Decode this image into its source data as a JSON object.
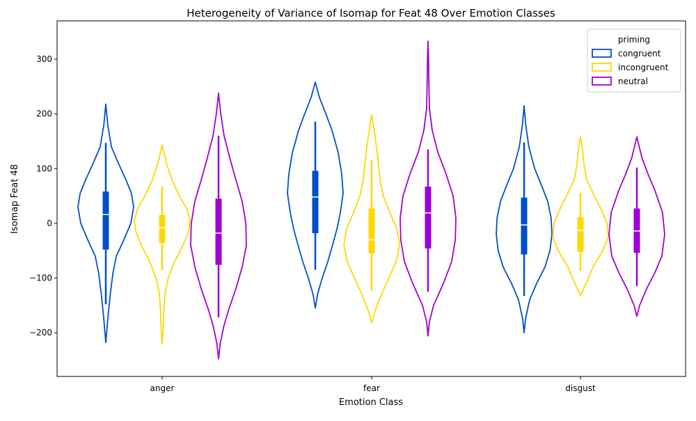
{
  "chart_data": {
    "type": "violin",
    "title": "Heterogeneity of Variance of Isomap for Feat 48 Over Emotion Classes",
    "xlabel": "Emotion Class",
    "ylabel": "Isomap Feat 48",
    "categories": [
      "anger",
      "fear",
      "disgust"
    ],
    "ylim": [
      -280,
      370
    ],
    "yticks": [
      -200,
      -100,
      0,
      100,
      200,
      300
    ],
    "ytick_labels": [
      "−200",
      "−100",
      "0",
      "100",
      "200",
      "300"
    ],
    "grid": false,
    "legend": {
      "title": "priming",
      "placement": "top-right",
      "entries": [
        "congruent",
        "incongruent",
        "neutral"
      ]
    },
    "series": [
      {
        "name": "congruent",
        "color": "#0050c8",
        "groups": [
          {
            "category": "anger",
            "q1": -48,
            "median": 16,
            "q3": 58,
            "whisker_low": -148,
            "whisker_high": 147,
            "kde_min": -218,
            "kde_max": 218,
            "profile": [
              [
                -218,
                0.0
              ],
              [
                -200,
                0.03
              ],
              [
                -170,
                0.08
              ],
              [
                -130,
                0.16
              ],
              [
                -90,
                0.26
              ],
              [
                -60,
                0.38
              ],
              [
                -30,
                0.65
              ],
              [
                0,
                0.9
              ],
              [
                30,
                1.0
              ],
              [
                55,
                0.92
              ],
              [
                80,
                0.72
              ],
              [
                110,
                0.45
              ],
              [
                140,
                0.2
              ],
              [
                180,
                0.07
              ],
              [
                218,
                0.0
              ]
            ]
          },
          {
            "category": "fear",
            "q1": -18,
            "median": 48,
            "q3": 96,
            "whisker_low": -85,
            "whisker_high": 186,
            "kde_min": -155,
            "kde_max": 258,
            "profile": [
              [
                -155,
                0.0
              ],
              [
                -130,
                0.08
              ],
              [
                -100,
                0.25
              ],
              [
                -70,
                0.45
              ],
              [
                -40,
                0.62
              ],
              [
                -10,
                0.78
              ],
              [
                20,
                0.9
              ],
              [
                55,
                1.0
              ],
              [
                90,
                0.95
              ],
              [
                130,
                0.82
              ],
              [
                170,
                0.6
              ],
              [
                200,
                0.38
              ],
              [
                230,
                0.15
              ],
              [
                258,
                0.0
              ]
            ]
          },
          {
            "category": "disgust",
            "q1": -57,
            "median": -3,
            "q3": 47,
            "whisker_low": -133,
            "whisker_high": 148,
            "kde_min": -200,
            "kde_max": 215,
            "profile": [
              [
                -200,
                0.0
              ],
              [
                -175,
                0.05
              ],
              [
                -140,
                0.2
              ],
              [
                -110,
                0.45
              ],
              [
                -80,
                0.75
              ],
              [
                -50,
                0.93
              ],
              [
                -20,
                1.0
              ],
              [
                10,
                0.97
              ],
              [
                40,
                0.85
              ],
              [
                70,
                0.62
              ],
              [
                100,
                0.38
              ],
              [
                140,
                0.17
              ],
              [
                180,
                0.06
              ],
              [
                215,
                0.0
              ]
            ]
          }
        ]
      },
      {
        "name": "incongruent",
        "color": "#ffd700",
        "groups": [
          {
            "category": "anger",
            "q1": -36,
            "median": -8,
            "q3": 15,
            "whisker_low": -86,
            "whisker_high": 67,
            "kde_min": -220,
            "kde_max": 143,
            "profile": [
              [
                -220,
                0.0
              ],
              [
                -200,
                0.03
              ],
              [
                -160,
                0.06
              ],
              [
                -130,
                0.1
              ],
              [
                -100,
                0.22
              ],
              [
                -70,
                0.45
              ],
              [
                -40,
                0.75
              ],
              [
                -15,
                0.95
              ],
              [
                5,
                1.0
              ],
              [
                25,
                0.9
              ],
              [
                50,
                0.62
              ],
              [
                80,
                0.35
              ],
              [
                110,
                0.15
              ],
              [
                143,
                0.0
              ]
            ]
          },
          {
            "category": "fear",
            "q1": -55,
            "median": -30,
            "q3": 27,
            "whisker_low": -123,
            "whisker_high": 116,
            "kde_min": -182,
            "kde_max": 198,
            "profile": [
              [
                -182,
                0.0
              ],
              [
                -160,
                0.12
              ],
              [
                -130,
                0.35
              ],
              [
                -100,
                0.62
              ],
              [
                -70,
                0.88
              ],
              [
                -40,
                1.0
              ],
              [
                -10,
                0.9
              ],
              [
                20,
                0.65
              ],
              [
                50,
                0.42
              ],
              [
                80,
                0.3
              ],
              [
                120,
                0.22
              ],
              [
                160,
                0.12
              ],
              [
                198,
                0.0
              ]
            ]
          },
          {
            "category": "disgust",
            "q1": -52,
            "median": -13,
            "q3": 11,
            "whisker_low": -87,
            "whisker_high": 56,
            "kde_min": -132,
            "kde_max": 158,
            "profile": [
              [
                -132,
                0.0
              ],
              [
                -110,
                0.2
              ],
              [
                -80,
                0.45
              ],
              [
                -50,
                0.8
              ],
              [
                -25,
                1.0
              ],
              [
                0,
                0.95
              ],
              [
                25,
                0.75
              ],
              [
                50,
                0.5
              ],
              [
                80,
                0.22
              ],
              [
                110,
                0.12
              ],
              [
                140,
                0.06
              ],
              [
                158,
                0.0
              ]
            ]
          }
        ]
      },
      {
        "name": "neutral",
        "color": "#a000d2",
        "groups": [
          {
            "category": "anger",
            "q1": -76,
            "median": -18,
            "q3": 45,
            "whisker_low": -172,
            "whisker_high": 160,
            "kde_min": -248,
            "kde_max": 238,
            "profile": [
              [
                -248,
                0.0
              ],
              [
                -220,
                0.06
              ],
              [
                -190,
                0.18
              ],
              [
                -160,
                0.35
              ],
              [
                -120,
                0.62
              ],
              [
                -80,
                0.85
              ],
              [
                -40,
                1.0
              ],
              [
                0,
                0.98
              ],
              [
                40,
                0.85
              ],
              [
                80,
                0.62
              ],
              [
                120,
                0.4
              ],
              [
                160,
                0.2
              ],
              [
                200,
                0.08
              ],
              [
                238,
                0.0
              ]
            ]
          },
          {
            "category": "fear",
            "q1": -46,
            "median": 19,
            "q3": 67,
            "whisker_low": -125,
            "whisker_high": 135,
            "kde_min": -206,
            "kde_max": 333,
            "profile": [
              [
                -206,
                0.0
              ],
              [
                -180,
                0.05
              ],
              [
                -150,
                0.2
              ],
              [
                -110,
                0.55
              ],
              [
                -70,
                0.85
              ],
              [
                -30,
                0.98
              ],
              [
                10,
                1.0
              ],
              [
                50,
                0.9
              ],
              [
                90,
                0.65
              ],
              [
                130,
                0.35
              ],
              [
                170,
                0.15
              ],
              [
                210,
                0.05
              ],
              [
                260,
                0.03
              ],
              [
                300,
                0.02
              ],
              [
                333,
                0.0
              ]
            ]
          },
          {
            "category": "disgust",
            "q1": -54,
            "median": -14,
            "q3": 27,
            "whisker_low": -115,
            "whisker_high": 102,
            "kde_min": -170,
            "kde_max": 158,
            "profile": [
              [
                -170,
                0.0
              ],
              [
                -150,
                0.1
              ],
              [
                -120,
                0.35
              ],
              [
                -90,
                0.65
              ],
              [
                -60,
                0.9
              ],
              [
                -20,
                1.0
              ],
              [
                20,
                0.92
              ],
              [
                60,
                0.65
              ],
              [
                90,
                0.4
              ],
              [
                120,
                0.18
              ],
              [
                158,
                0.0
              ]
            ]
          }
        ]
      }
    ]
  }
}
